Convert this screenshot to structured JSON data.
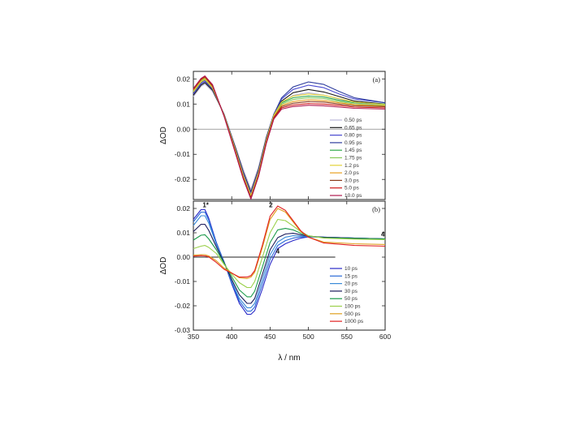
{
  "chart_data": [
    {
      "type": "line",
      "panel_label": "(a)",
      "xlabel": "",
      "ylabel": "ΔOD",
      "xlim": [
        350,
        600
      ],
      "ylim": [
        -0.028,
        0.023
      ],
      "x_ticks": [
        350,
        400,
        450,
        500,
        550,
        600
      ],
      "x_tick_labels": [],
      "y_ticks": [
        -0.02,
        -0.01,
        0.0,
        0.01,
        0.02
      ],
      "y_tick_labels": [
        "-0.02",
        "-0.01",
        "0.00",
        "0.01",
        "0.02"
      ],
      "zero_line_to": 600,
      "grid": false,
      "legend_position": "right",
      "annotations": [],
      "series": [
        {
          "name": "0.50 ps",
          "color": "#b9b6d8",
          "x": [
            350,
            360,
            365,
            375,
            390,
            405,
            415,
            425,
            435,
            445,
            455,
            465,
            480,
            500,
            520,
            540,
            560,
            600
          ],
          "y": [
            0.013,
            0.017,
            0.018,
            0.015,
            0.006,
            -0.007,
            -0.016,
            -0.024,
            -0.015,
            -0.003,
            0.006,
            0.0105,
            0.0135,
            0.0145,
            0.0135,
            0.012,
            0.0105,
            0.0095
          ]
        },
        {
          "name": "0.65 ps",
          "color": "#1a1a1a",
          "x": [
            350,
            360,
            365,
            375,
            390,
            405,
            415,
            425,
            435,
            445,
            455,
            465,
            480,
            500,
            520,
            540,
            560,
            600
          ],
          "y": [
            0.0135,
            0.0175,
            0.0185,
            0.0155,
            0.006,
            -0.0075,
            -0.017,
            -0.025,
            -0.016,
            -0.0035,
            0.006,
            0.0112,
            0.0145,
            0.0158,
            0.0148,
            0.013,
            0.0112,
            0.01
          ]
        },
        {
          "name": "0.80 ps",
          "color": "#4a4ad0",
          "x": [
            350,
            360,
            365,
            375,
            390,
            405,
            415,
            425,
            435,
            445,
            455,
            465,
            480,
            500,
            520,
            540,
            560,
            600
          ],
          "y": [
            0.014,
            0.018,
            0.019,
            0.016,
            0.006,
            -0.008,
            -0.0175,
            -0.0255,
            -0.0165,
            -0.004,
            0.006,
            0.012,
            0.0158,
            0.0175,
            0.0165,
            0.014,
            0.012,
            0.0105
          ]
        },
        {
          "name": "0.95 ps",
          "color": "#2f3e9e",
          "x": [
            350,
            360,
            365,
            375,
            390,
            405,
            415,
            425,
            435,
            445,
            455,
            465,
            480,
            500,
            520,
            540,
            560,
            600
          ],
          "y": [
            0.0145,
            0.0185,
            0.0195,
            0.0162,
            0.0058,
            -0.0082,
            -0.018,
            -0.026,
            -0.017,
            -0.0042,
            0.006,
            0.0125,
            0.0168,
            0.0188,
            0.0178,
            0.015,
            0.0125,
            0.0105
          ]
        },
        {
          "name": "1.45 ps",
          "color": "#2ea84a",
          "x": [
            350,
            360,
            365,
            375,
            390,
            405,
            415,
            425,
            435,
            445,
            455,
            465,
            480,
            500,
            520,
            540,
            560,
            600
          ],
          "y": [
            0.015,
            0.019,
            0.02,
            0.0165,
            0.0056,
            -0.0085,
            -0.0185,
            -0.0265,
            -0.0175,
            -0.0045,
            0.0055,
            0.0105,
            0.0125,
            0.0132,
            0.0128,
            0.0115,
            0.0105,
            0.01
          ]
        },
        {
          "name": "1.75 ps",
          "color": "#86c95a",
          "x": [
            350,
            360,
            365,
            375,
            390,
            405,
            415,
            425,
            435,
            445,
            455,
            465,
            480,
            500,
            520,
            540,
            560,
            600
          ],
          "y": [
            0.0152,
            0.0192,
            0.0202,
            0.0167,
            0.0055,
            -0.0087,
            -0.0188,
            -0.0268,
            -0.0178,
            -0.0047,
            0.0052,
            0.01,
            0.0118,
            0.0125,
            0.0122,
            0.011,
            0.01,
            0.0095
          ]
        },
        {
          "name": "1.2 ps",
          "color": "#e2d23a",
          "x": [
            350,
            360,
            365,
            375,
            390,
            405,
            415,
            425,
            435,
            445,
            455,
            465,
            480,
            500,
            520,
            540,
            560,
            600
          ],
          "y": [
            0.0148,
            0.0188,
            0.0198,
            0.0164,
            0.0057,
            -0.0084,
            -0.0183,
            -0.0263,
            -0.0172,
            -0.0044,
            0.0056,
            0.0108,
            0.0132,
            0.014,
            0.0135,
            0.0122,
            0.0108,
            0.0098
          ]
        },
        {
          "name": "2.0 ps",
          "color": "#e8a020",
          "x": [
            350,
            360,
            365,
            375,
            390,
            405,
            415,
            425,
            435,
            445,
            455,
            465,
            480,
            500,
            520,
            540,
            560,
            600
          ],
          "y": [
            0.0155,
            0.0195,
            0.0205,
            0.017,
            0.0054,
            -0.009,
            -0.019,
            -0.027,
            -0.018,
            -0.005,
            0.005,
            0.0095,
            0.011,
            0.0117,
            0.0114,
            0.0105,
            0.0098,
            0.0092
          ]
        },
        {
          "name": "3.0 ps",
          "color": "#8a3a1a",
          "x": [
            350,
            360,
            365,
            375,
            390,
            405,
            415,
            425,
            435,
            445,
            455,
            465,
            480,
            500,
            520,
            540,
            560,
            600
          ],
          "y": [
            0.0158,
            0.0198,
            0.0208,
            0.0172,
            0.0053,
            -0.0092,
            -0.0193,
            -0.0273,
            -0.0183,
            -0.0052,
            0.0047,
            0.009,
            0.0103,
            0.011,
            0.0108,
            0.01,
            0.0093,
            0.009
          ]
        },
        {
          "name": "5.0 ps",
          "color": "#d01818",
          "x": [
            350,
            360,
            365,
            375,
            390,
            405,
            415,
            425,
            435,
            445,
            455,
            465,
            480,
            500,
            520,
            540,
            560,
            600
          ],
          "y": [
            0.016,
            0.02,
            0.021,
            0.0175,
            0.0052,
            -0.0095,
            -0.0196,
            -0.0276,
            -0.0186,
            -0.0055,
            0.0044,
            0.0085,
            0.0096,
            0.0102,
            0.01,
            0.0094,
            0.0088,
            0.0085
          ]
        },
        {
          "name": "10.0 ps",
          "color": "#b01a50",
          "x": [
            350,
            360,
            365,
            375,
            390,
            405,
            415,
            425,
            435,
            445,
            455,
            465,
            480,
            500,
            520,
            540,
            560,
            600
          ],
          "y": [
            0.0162,
            0.0202,
            0.0212,
            0.0177,
            0.0051,
            -0.0097,
            -0.0198,
            -0.0278,
            -0.0188,
            -0.0058,
            0.0041,
            0.008,
            0.009,
            0.0095,
            0.0093,
            0.0088,
            0.0083,
            0.008
          ]
        }
      ]
    },
    {
      "type": "line",
      "panel_label": "(b)",
      "xlabel": "λ / nm",
      "ylabel": "ΔOD",
      "xlim": [
        350,
        600
      ],
      "ylim": [
        -0.03,
        0.023
      ],
      "x_ticks": [
        350,
        400,
        450,
        500,
        550,
        600
      ],
      "x_tick_labels": [
        "350",
        "400",
        "450",
        "500",
        "550",
        "600"
      ],
      "y_ticks": [
        -0.03,
        -0.02,
        -0.01,
        0.0,
        0.01,
        0.02
      ],
      "y_tick_labels": [
        "-0.03",
        "-0.02",
        "-0.01",
        "0.00",
        "0.01",
        "0.02"
      ],
      "zero_line_to": 535,
      "grid": false,
      "legend_position": "right",
      "annotations": [
        {
          "text": "1*",
          "x": 366,
          "y": 0.0205
        },
        {
          "text": "2",
          "x": 451,
          "y": 0.0205
        },
        {
          "text": "4",
          "x": 460,
          "y": 0.0015
        },
        {
          "text": "4",
          "x": 597,
          "y": 0.0085
        }
      ],
      "series": [
        {
          "name": "10 ps",
          "color": "#2a2ac8",
          "x": [
            350,
            360,
            365,
            370,
            380,
            390,
            400,
            410,
            420,
            425,
            430,
            440,
            450,
            460,
            470,
            480,
            490,
            500,
            520,
            560,
            600
          ],
          "y": [
            0.0155,
            0.0195,
            0.0195,
            0.016,
            0.006,
            -0.002,
            -0.011,
            -0.019,
            -0.0235,
            -0.0235,
            -0.022,
            -0.013,
            -0.003,
            0.0035,
            0.0055,
            0.0068,
            0.0078,
            0.0083,
            0.0082,
            0.0078,
            0.0075
          ]
        },
        {
          "name": "15 ps",
          "color": "#2a6ad8",
          "x": [
            350,
            360,
            365,
            370,
            380,
            390,
            400,
            410,
            420,
            425,
            430,
            440,
            450,
            460,
            470,
            480,
            490,
            500,
            520,
            560,
            600
          ],
          "y": [
            0.0145,
            0.0185,
            0.0185,
            0.0152,
            0.0057,
            -0.002,
            -0.0105,
            -0.018,
            -0.0222,
            -0.0222,
            -0.0205,
            -0.011,
            -0.001,
            0.0048,
            0.0068,
            0.0078,
            0.0083,
            0.0084,
            0.0082,
            0.0078,
            0.0075
          ]
        },
        {
          "name": "20 ps",
          "color": "#3a8ad8",
          "x": [
            350,
            360,
            365,
            370,
            380,
            390,
            400,
            410,
            420,
            425,
            430,
            440,
            450,
            460,
            470,
            480,
            490,
            500,
            520,
            560,
            600
          ],
          "y": [
            0.013,
            0.017,
            0.017,
            0.014,
            0.0052,
            -0.002,
            -0.01,
            -0.017,
            -0.0208,
            -0.0208,
            -0.019,
            -0.009,
            0.001,
            0.0062,
            0.0082,
            0.0088,
            0.0087,
            0.0085,
            0.0082,
            0.0078,
            0.0075
          ]
        },
        {
          "name": "30 ps",
          "color": "#1a1a5a",
          "x": [
            350,
            360,
            365,
            370,
            380,
            390,
            400,
            410,
            420,
            425,
            430,
            440,
            450,
            460,
            470,
            480,
            490,
            500,
            520,
            560,
            600
          ],
          "y": [
            0.0105,
            0.0135,
            0.0135,
            0.011,
            0.0042,
            -0.0022,
            -0.0092,
            -0.0155,
            -0.019,
            -0.019,
            -0.017,
            -0.007,
            0.003,
            0.008,
            0.0095,
            0.0098,
            0.0092,
            0.0086,
            0.0082,
            0.0078,
            0.0075
          ]
        },
        {
          "name": "50 ps",
          "color": "#1a9a4a",
          "x": [
            350,
            360,
            365,
            370,
            380,
            390,
            400,
            410,
            420,
            425,
            430,
            440,
            450,
            460,
            470,
            480,
            490,
            500,
            520,
            560,
            600
          ],
          "y": [
            0.007,
            0.009,
            0.0092,
            0.0075,
            0.003,
            -0.0025,
            -0.008,
            -0.0135,
            -0.0163,
            -0.0163,
            -0.014,
            -0.004,
            0.006,
            0.0112,
            0.0118,
            0.0112,
            0.0098,
            0.0087,
            0.008,
            0.0077,
            0.0075
          ]
        },
        {
          "name": "100 ps",
          "color": "#9ad04a",
          "x": [
            350,
            360,
            365,
            370,
            380,
            390,
            400,
            410,
            420,
            425,
            430,
            440,
            450,
            460,
            470,
            480,
            490,
            500,
            520,
            560,
            600
          ],
          "y": [
            0.0035,
            0.0045,
            0.0048,
            0.004,
            0.0015,
            -0.003,
            -0.007,
            -0.0105,
            -0.0125,
            -0.0125,
            -0.01,
            0.0,
            0.01,
            0.0155,
            0.015,
            0.0128,
            0.0105,
            0.0088,
            0.0078,
            0.0074,
            0.0072
          ]
        },
        {
          "name": "500 ps",
          "color": "#e0a020",
          "x": [
            350,
            360,
            365,
            370,
            380,
            390,
            400,
            410,
            420,
            425,
            430,
            440,
            450,
            460,
            470,
            480,
            490,
            500,
            520,
            560,
            600
          ],
          "y": [
            0.0008,
            0.001,
            0.001,
            0.0005,
            -0.0015,
            -0.0045,
            -0.0065,
            -0.0085,
            -0.0088,
            -0.0082,
            -0.0062,
            0.004,
            0.0155,
            0.02,
            0.0185,
            0.0145,
            0.0105,
            0.0082,
            0.0062,
            0.0055,
            0.0052
          ]
        },
        {
          "name": "1000 ps",
          "color": "#e02020",
          "x": [
            350,
            360,
            365,
            370,
            380,
            390,
            400,
            410,
            420,
            425,
            430,
            440,
            450,
            460,
            470,
            480,
            490,
            500,
            520,
            560,
            600
          ],
          "y": [
            0.0004,
            0.0006,
            0.0005,
            0.0001,
            -0.0022,
            -0.005,
            -0.0066,
            -0.0082,
            -0.0082,
            -0.0076,
            -0.0055,
            0.005,
            0.0168,
            0.021,
            0.0192,
            0.015,
            0.0108,
            0.0082,
            0.0058,
            0.0048,
            0.0045
          ]
        }
      ]
    }
  ]
}
